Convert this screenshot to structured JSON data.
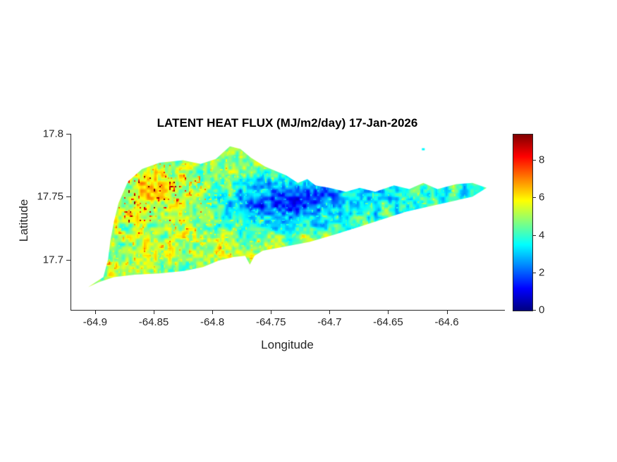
{
  "chart_data": {
    "type": "heatmap",
    "title": "LATENT HEAT FLUX (MJ/m2/day) 17-Jan-2026",
    "xlabel": "Longitude",
    "ylabel": "Latitude",
    "xlim": [
      -64.921,
      -64.551
    ],
    "ylim": [
      17.66,
      17.8
    ],
    "xticks": [
      -64.9,
      -64.85,
      -64.8,
      -64.75,
      -64.7,
      -64.65,
      -64.6
    ],
    "xtick_labels": [
      "-64.9",
      "-64.85",
      "-64.8",
      "-64.75",
      "-64.7",
      "-64.65",
      "-64.6"
    ],
    "yticks": [
      17.7,
      17.75,
      17.8
    ],
    "ytick_labels": [
      "17.7",
      "17.75",
      "17.8"
    ],
    "grid": false,
    "legend_position": "colorbar-right",
    "background": "#ffffff",
    "text_color": "#262626",
    "colorbar": {
      "min": 0,
      "max": 9.4,
      "ticks": [
        0,
        2,
        4,
        6,
        8
      ],
      "tick_labels": [
        "0",
        "2",
        "4",
        "6",
        "8"
      ],
      "colormap": "jet"
    },
    "colormap_stops": [
      {
        "t": 0.0,
        "color": [
          0,
          0,
          128
        ]
      },
      {
        "t": 0.125,
        "color": [
          0,
          0,
          255
        ]
      },
      {
        "t": 0.375,
        "color": [
          0,
          255,
          255
        ]
      },
      {
        "t": 0.625,
        "color": [
          255,
          255,
          0
        ]
      },
      {
        "t": 0.875,
        "color": [
          255,
          0,
          0
        ]
      },
      {
        "t": 1.0,
        "color": [
          128,
          0,
          0
        ]
      }
    ],
    "island_outline": [
      [
        -64.906,
        17.678
      ],
      [
        -64.893,
        17.686
      ],
      [
        -64.889,
        17.7
      ],
      [
        -64.887,
        17.715
      ],
      [
        -64.884,
        17.73
      ],
      [
        -64.88,
        17.745
      ],
      [
        -64.872,
        17.762
      ],
      [
        -64.86,
        17.772
      ],
      [
        -64.845,
        17.777
      ],
      [
        -64.825,
        17.779
      ],
      [
        -64.81,
        17.776
      ],
      [
        -64.797,
        17.78
      ],
      [
        -64.785,
        17.79
      ],
      [
        -64.776,
        17.788
      ],
      [
        -64.767,
        17.781
      ],
      [
        -64.755,
        17.774
      ],
      [
        -64.737,
        17.767
      ],
      [
        -64.727,
        17.761
      ],
      [
        -64.719,
        17.764
      ],
      [
        -64.712,
        17.759
      ],
      [
        -64.7,
        17.757
      ],
      [
        -64.686,
        17.754
      ],
      [
        -64.674,
        17.757
      ],
      [
        -64.661,
        17.754
      ],
      [
        -64.645,
        17.759
      ],
      [
        -64.632,
        17.756
      ],
      [
        -64.62,
        17.761
      ],
      [
        -64.608,
        17.756
      ],
      [
        -64.592,
        17.76
      ],
      [
        -64.578,
        17.761
      ],
      [
        -64.566,
        17.757
      ],
      [
        -64.578,
        17.75
      ],
      [
        -64.597,
        17.746
      ],
      [
        -64.616,
        17.742
      ],
      [
        -64.635,
        17.738
      ],
      [
        -64.655,
        17.732
      ],
      [
        -64.675,
        17.726
      ],
      [
        -64.695,
        17.72
      ],
      [
        -64.717,
        17.714
      ],
      [
        -64.74,
        17.71
      ],
      [
        -64.757,
        17.707
      ],
      [
        -64.764,
        17.703
      ],
      [
        -64.768,
        17.696
      ],
      [
        -64.772,
        17.703
      ],
      [
        -64.782,
        17.702
      ],
      [
        -64.795,
        17.699
      ],
      [
        -64.808,
        17.694
      ],
      [
        -64.824,
        17.691
      ],
      [
        -64.845,
        17.689
      ],
      [
        -64.866,
        17.688
      ],
      [
        -64.884,
        17.686
      ],
      [
        -64.897,
        17.682
      ]
    ],
    "islets": [
      [
        -64.62,
        17.788,
        3.5
      ]
    ],
    "field": {
      "base": 4.3,
      "amp1": 1.05,
      "scale1": 330,
      "amp2": 0.8,
      "scale2": 120,
      "scale3": 600,
      "spike_threshold": 0.78,
      "spike_amp": 3.8,
      "bumps": [
        [
          -64.862,
          17.752,
          0.038,
          0.02,
          1.6
        ],
        [
          -64.745,
          17.744,
          0.028,
          0.013,
          -2.2
        ],
        [
          -64.7,
          17.75,
          0.04,
          0.012,
          -1.0
        ],
        [
          -64.62,
          17.752,
          0.04,
          0.01,
          -0.6
        ],
        [
          -64.8,
          17.703,
          0.05,
          0.013,
          0.9
        ],
        [
          -64.88,
          17.69,
          0.025,
          0.01,
          1.0
        ],
        [
          -64.77,
          17.772,
          0.03,
          0.012,
          0.5
        ]
      ],
      "value_range_displayed": [
        0.4,
        9.35
      ]
    }
  }
}
